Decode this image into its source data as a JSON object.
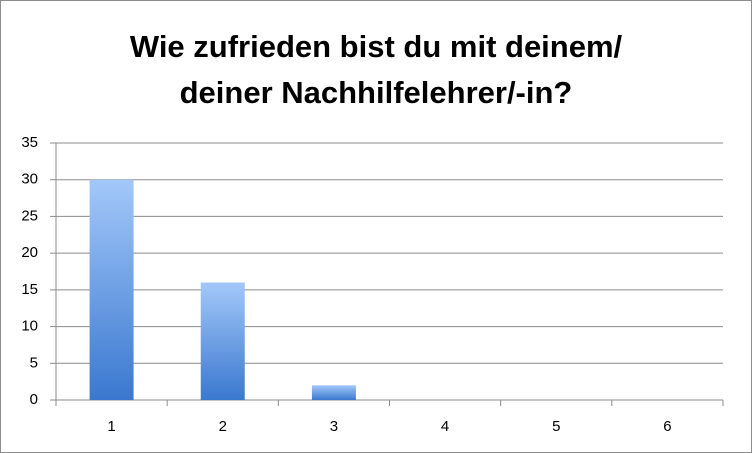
{
  "chart_data": {
    "type": "bar",
    "title": [
      "Wie zufrieden bist du mit deinem/",
      "deiner Nachhilfelehrer/-in?"
    ],
    "categories": [
      "1",
      "2",
      "3",
      "4",
      "5",
      "6"
    ],
    "values": [
      30,
      16,
      2,
      0,
      0,
      0
    ],
    "ylim": [
      0,
      35
    ],
    "yticks": [
      0,
      5,
      10,
      15,
      20,
      25,
      30,
      35
    ],
    "grid": true
  }
}
